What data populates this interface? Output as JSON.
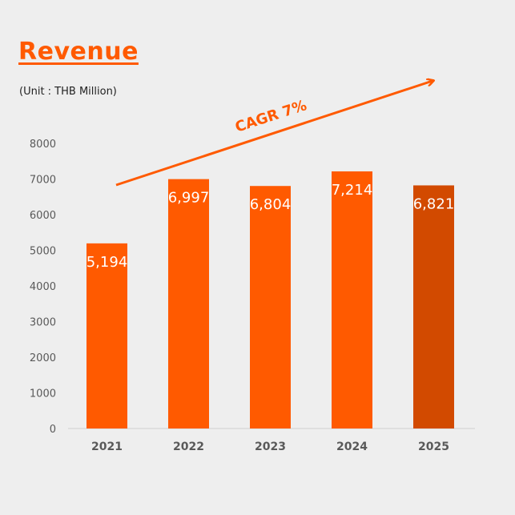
{
  "chart_data": {
    "type": "bar",
    "title": "Revenue",
    "subtitle": "(Unit : THB Million)",
    "categories": [
      "2021",
      "2022",
      "2023",
      "2024",
      "2025"
    ],
    "values": [
      5194,
      6997,
      6804,
      7214,
      6821
    ],
    "data_labels": [
      "5,194",
      "6,997",
      "6,804",
      "7,214",
      "6,821"
    ],
    "bar_colors": [
      "#ff5a00",
      "#ff5a00",
      "#ff5a00",
      "#ff5a00",
      "#d24a00"
    ],
    "ylim": [
      0,
      8000
    ],
    "yticks": [
      0,
      1000,
      2000,
      3000,
      4000,
      5000,
      6000,
      7000,
      8000
    ],
    "xlabel": "",
    "ylabel": "",
    "grid": false,
    "annotation": "CAGR 7%"
  }
}
